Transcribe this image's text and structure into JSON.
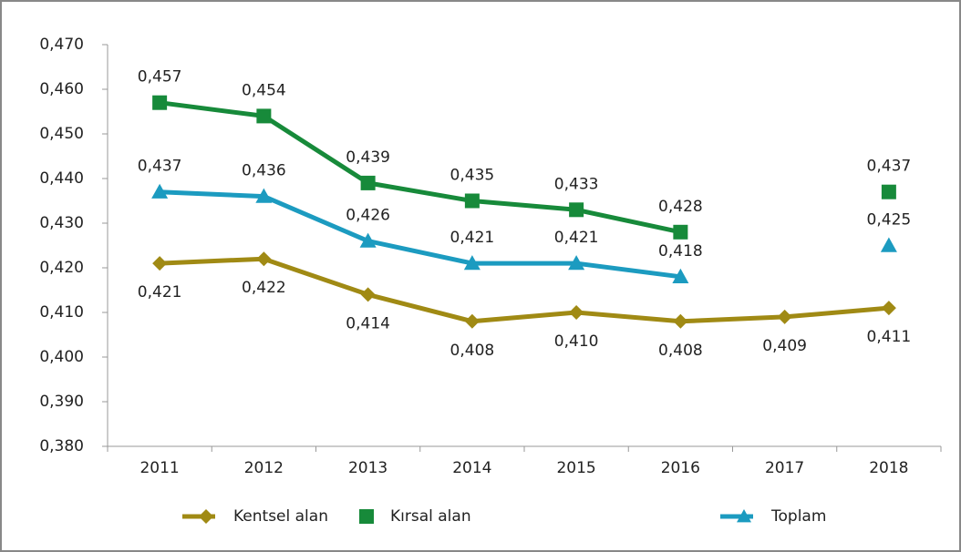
{
  "chart_data": {
    "type": "line",
    "categories": [
      "2011",
      "2012",
      "2013",
      "2014",
      "2015",
      "2016",
      "2017",
      "2018"
    ],
    "series": [
      {
        "name": "Kentsel alan",
        "color": "#a08a14",
        "marker": "diamond",
        "values": [
          0.421,
          0.422,
          0.414,
          0.408,
          0.41,
          0.408,
          0.409,
          0.411
        ],
        "value_labels": [
          "0,421",
          "0,422",
          "0,414",
          "0,408",
          "0,410",
          "0,408",
          "0,409",
          "0,411"
        ]
      },
      {
        "name": "Kırsal alan",
        "color": "#178a3a",
        "marker": "square",
        "values": [
          0.457,
          0.454,
          0.439,
          0.435,
          0.433,
          0.428,
          null,
          0.437
        ],
        "value_labels": [
          "0,457",
          "0,454",
          "0,439",
          "0,435",
          "0,433",
          "0,428",
          null,
          "0,437"
        ]
      },
      {
        "name": "Toplam",
        "color": "#1c9bc0",
        "marker": "triangle",
        "values": [
          0.437,
          0.436,
          0.426,
          0.421,
          0.421,
          0.418,
          null,
          0.425
        ],
        "value_labels": [
          "0,437",
          "0,436",
          "0,426",
          "0,421",
          "0,421",
          "0,418",
          null,
          "0,425"
        ]
      }
    ],
    "ylim": [
      0.38,
      0.47
    ],
    "yticks": [
      {
        "value": 0.38,
        "label": "0,380"
      },
      {
        "value": 0.39,
        "label": "0,390"
      },
      {
        "value": 0.4,
        "label": "0,400"
      },
      {
        "value": 0.41,
        "label": "0,410"
      },
      {
        "value": 0.42,
        "label": "0,420"
      },
      {
        "value": 0.43,
        "label": "0,430"
      },
      {
        "value": 0.44,
        "label": "0,440"
      },
      {
        "value": 0.45,
        "label": "0,450"
      },
      {
        "value": 0.46,
        "label": "0,460"
      },
      {
        "value": 0.47,
        "label": "0,470"
      }
    ],
    "grid": false,
    "legend": "bottom"
  }
}
